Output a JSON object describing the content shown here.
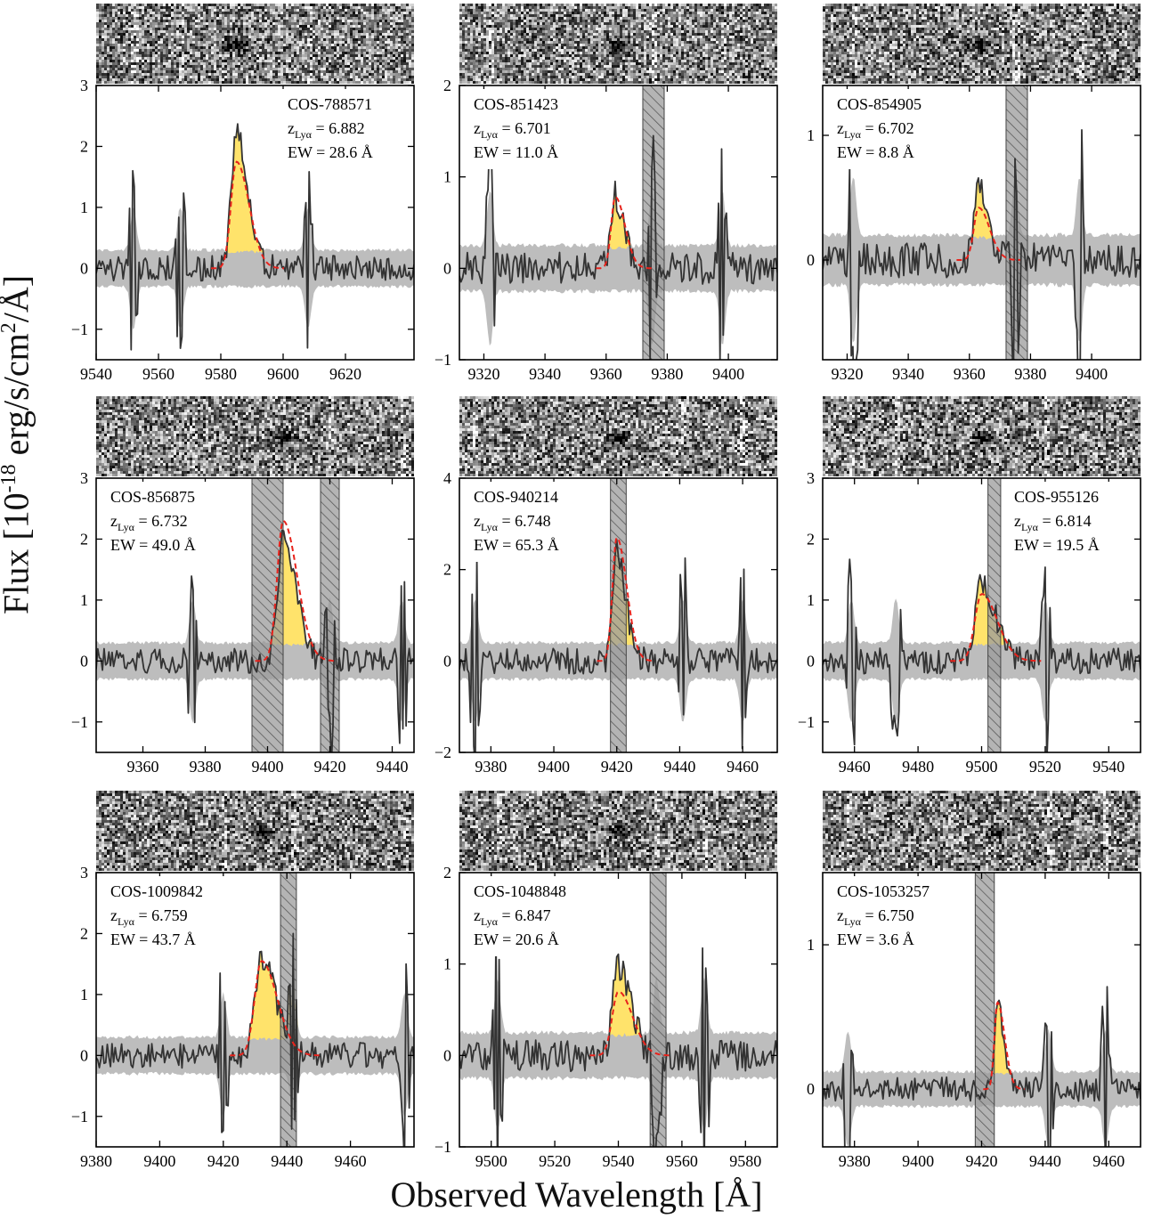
{
  "figure": {
    "ylabel": "Flux [10-18 erg/s/cm2/Å]",
    "xlabel": "Observed Wavelength [Å]",
    "ylabel_parts": {
      "pre": "Flux [10",
      "exp1": "-18",
      "mid": " erg/s/cm",
      "exp2": "2",
      "post": "/Å]"
    }
  },
  "colors": {
    "spectrum": "#333333",
    "noise_band": "#bdbdbd",
    "lya_fill": "#ffe36b",
    "fit": "#e8231c",
    "mask": "#9a9a9a"
  },
  "chart_data": [
    {
      "type": "line",
      "id": "COS-788571",
      "label": {
        "name": "COS-788571",
        "z_prefix": "z",
        "z_sub": "Lyα",
        "z_value": "= 6.882",
        "ew": "EW = 28.6 Å"
      },
      "label_corner": "top-right",
      "xlim": [
        9540,
        9642
      ],
      "ylim": [
        -1.5,
        3
      ],
      "xticks": [
        9540,
        9560,
        9580,
        9600,
        9620
      ],
      "yticks": [
        -1,
        0,
        1,
        2,
        3
      ],
      "ytick_labels": [
        "−1",
        "0",
        "1",
        "2",
        "3"
      ],
      "line_center": 9585,
      "line_width": 9,
      "line_peak": 2.2,
      "fit_peak": 1.75,
      "noise_level": 0.3,
      "sky_lines": [
        9552,
        9567,
        9608
      ],
      "masks": []
    },
    {
      "type": "line",
      "id": "COS-851423",
      "label": {
        "name": "COS-851423",
        "z_prefix": "z",
        "z_sub": "Lyα",
        "z_value": "= 6.701",
        "ew": "EW = 11.0 Å"
      },
      "label_corner": "top-left",
      "xlim": [
        9312,
        9416
      ],
      "ylim": [
        -1,
        2
      ],
      "xticks": [
        9320,
        9340,
        9360,
        9380,
        9400
      ],
      "yticks": [
        -1,
        0,
        1,
        2
      ],
      "ytick_labels": [
        "−1",
        "0",
        "1",
        "2"
      ],
      "line_center": 9363,
      "line_width": 7,
      "line_peak": 0.8,
      "fit_peak": 0.78,
      "noise_level": 0.25,
      "sky_lines": [
        9322,
        9375,
        9398
      ],
      "masks": [
        [
          9372,
          9379
        ]
      ]
    },
    {
      "type": "line",
      "id": "COS-854905",
      "label": {
        "name": "COS-854905",
        "z_prefix": "z",
        "z_sub": "Lyα",
        "z_value": "= 6.702",
        "ew": "EW = 8.8 Å"
      },
      "label_corner": "top-left",
      "xlim": [
        9312,
        9416
      ],
      "ylim": [
        -0.8,
        1.4
      ],
      "xticks": [
        9320,
        9340,
        9360,
        9380,
        9400
      ],
      "yticks": [
        0,
        1
      ],
      "ytick_labels": [
        "0",
        "1"
      ],
      "line_center": 9363,
      "line_width": 8,
      "line_peak": 0.55,
      "fit_peak": 0.42,
      "noise_level": 0.2,
      "sky_lines": [
        9322,
        9375,
        9396
      ],
      "masks": [
        [
          9372,
          9379
        ]
      ]
    },
    {
      "type": "line",
      "id": "COS-856875",
      "label": {
        "name": "COS-856875",
        "z_prefix": "z",
        "z_sub": "Lyα",
        "z_value": "= 6.732",
        "ew": "EW = 49.0 Å"
      },
      "label_corner": "top-left",
      "xlim": [
        9345,
        9447
      ],
      "ylim": [
        -1.5,
        3
      ],
      "xticks": [
        9360,
        9380,
        9400,
        9420,
        9440
      ],
      "yticks": [
        -1,
        0,
        1,
        2,
        3
      ],
      "ytick_labels": [
        "−1",
        "0",
        "1",
        "2",
        "3"
      ],
      "line_center": 9405,
      "line_width": 10,
      "line_peak": 2.0,
      "fit_peak": 2.3,
      "noise_level": 0.3,
      "sky_lines": [
        9376,
        9420,
        9443
      ],
      "masks": [
        [
          9395,
          9405
        ],
        [
          9417,
          9423
        ]
      ]
    },
    {
      "type": "line",
      "id": "COS-940214",
      "label": {
        "name": "COS-940214",
        "z_prefix": "z",
        "z_sub": "Lyα",
        "z_value": "= 6.748",
        "ew": "EW = 65.3 Å"
      },
      "label_corner": "top-left",
      "xlim": [
        9370,
        9471
      ],
      "ylim": [
        -2,
        4
      ],
      "xticks": [
        9380,
        9400,
        9420,
        9440,
        9460
      ],
      "yticks": [
        -2,
        0,
        2,
        4
      ],
      "ytick_labels": [
        "−2",
        "0",
        "2",
        "4"
      ],
      "line_center": 9420,
      "line_width": 7,
      "line_peak": 2.4,
      "fit_peak": 2.7,
      "noise_level": 0.4,
      "sky_lines": [
        9375,
        9441,
        9460
      ],
      "masks": [
        [
          9418,
          9423
        ]
      ]
    },
    {
      "type": "line",
      "id": "COS-955126",
      "label": {
        "name": "COS-955126",
        "z_prefix": "z",
        "z_sub": "Lyα",
        "z_value": "= 6.814",
        "ew": "EW = 19.5 Å"
      },
      "label_corner": "top-right",
      "xlim": [
        9450,
        9550
      ],
      "ylim": [
        -1.5,
        3
      ],
      "xticks": [
        9460,
        9480,
        9500,
        9520,
        9540
      ],
      "yticks": [
        -1,
        0,
        1,
        2,
        3
      ],
      "ytick_labels": [
        "−1",
        "0",
        "1",
        "2",
        "3"
      ],
      "line_center": 9500,
      "line_width": 11,
      "line_peak": 1.25,
      "fit_peak": 1.1,
      "noise_level": 0.3,
      "sky_lines": [
        9459,
        9473,
        9520
      ],
      "masks": [
        [
          9502,
          9506
        ]
      ]
    },
    {
      "type": "line",
      "id": "COS-1009842",
      "label": {
        "name": "COS-1009842",
        "z_prefix": "z",
        "z_sub": "Lyα",
        "z_value": "= 6.759",
        "ew": "EW = 43.7 Å"
      },
      "label_corner": "top-left",
      "xlim": [
        9380,
        9480
      ],
      "ylim": [
        -1.5,
        3
      ],
      "xticks": [
        9380,
        9400,
        9420,
        9440,
        9460
      ],
      "yticks": [
        -1,
        0,
        1,
        2,
        3
      ],
      "ytick_labels": [
        "−1",
        "0",
        "1",
        "2",
        "3"
      ],
      "line_center": 9432,
      "line_width": 11,
      "line_peak": 1.6,
      "fit_peak": 1.55,
      "noise_level": 0.3,
      "sky_lines": [
        9420,
        9442,
        9477
      ],
      "masks": [
        [
          9438,
          9443
        ]
      ]
    },
    {
      "type": "line",
      "id": "COS-1048848",
      "label": {
        "name": "COS-1048848",
        "z_prefix": "z",
        "z_sub": "Lyα",
        "z_value": "= 6.847",
        "ew": "EW = 20.6 Å"
      },
      "label_corner": "top-left",
      "xlim": [
        9490,
        9590
      ],
      "ylim": [
        -1,
        2
      ],
      "xticks": [
        9500,
        9520,
        9540,
        9560,
        9580
      ],
      "yticks": [
        -1,
        0,
        1,
        2
      ],
      "ytick_labels": [
        "−1",
        "0",
        "1",
        "2"
      ],
      "line_center": 9540,
      "line_width": 10,
      "line_peak": 1.0,
      "fit_peak": 0.7,
      "noise_level": 0.25,
      "sky_lines": [
        9502,
        9552,
        9567
      ],
      "masks": [
        [
          9550,
          9555
        ]
      ]
    },
    {
      "type": "line",
      "id": "COS-1053257",
      "label": {
        "name": "COS-1053257",
        "z_prefix": "z",
        "z_sub": "Lyα",
        "z_value": "= 6.750",
        "ew": "EW = 3.6 Å"
      },
      "label_corner": "top-left",
      "xlim": [
        9370,
        9470
      ],
      "ylim": [
        -0.4,
        1.5
      ],
      "xticks": [
        9380,
        9400,
        9420,
        9440,
        9460
      ],
      "yticks": [
        0,
        1
      ],
      "ytick_labels": [
        "0",
        "1"
      ],
      "line_center": 9425,
      "line_width": 5,
      "line_peak": 0.6,
      "fit_peak": 0.6,
      "noise_level": 0.12,
      "sky_lines": [
        9378,
        9441,
        9459
      ],
      "masks": [
        [
          9418,
          9424
        ]
      ]
    }
  ]
}
